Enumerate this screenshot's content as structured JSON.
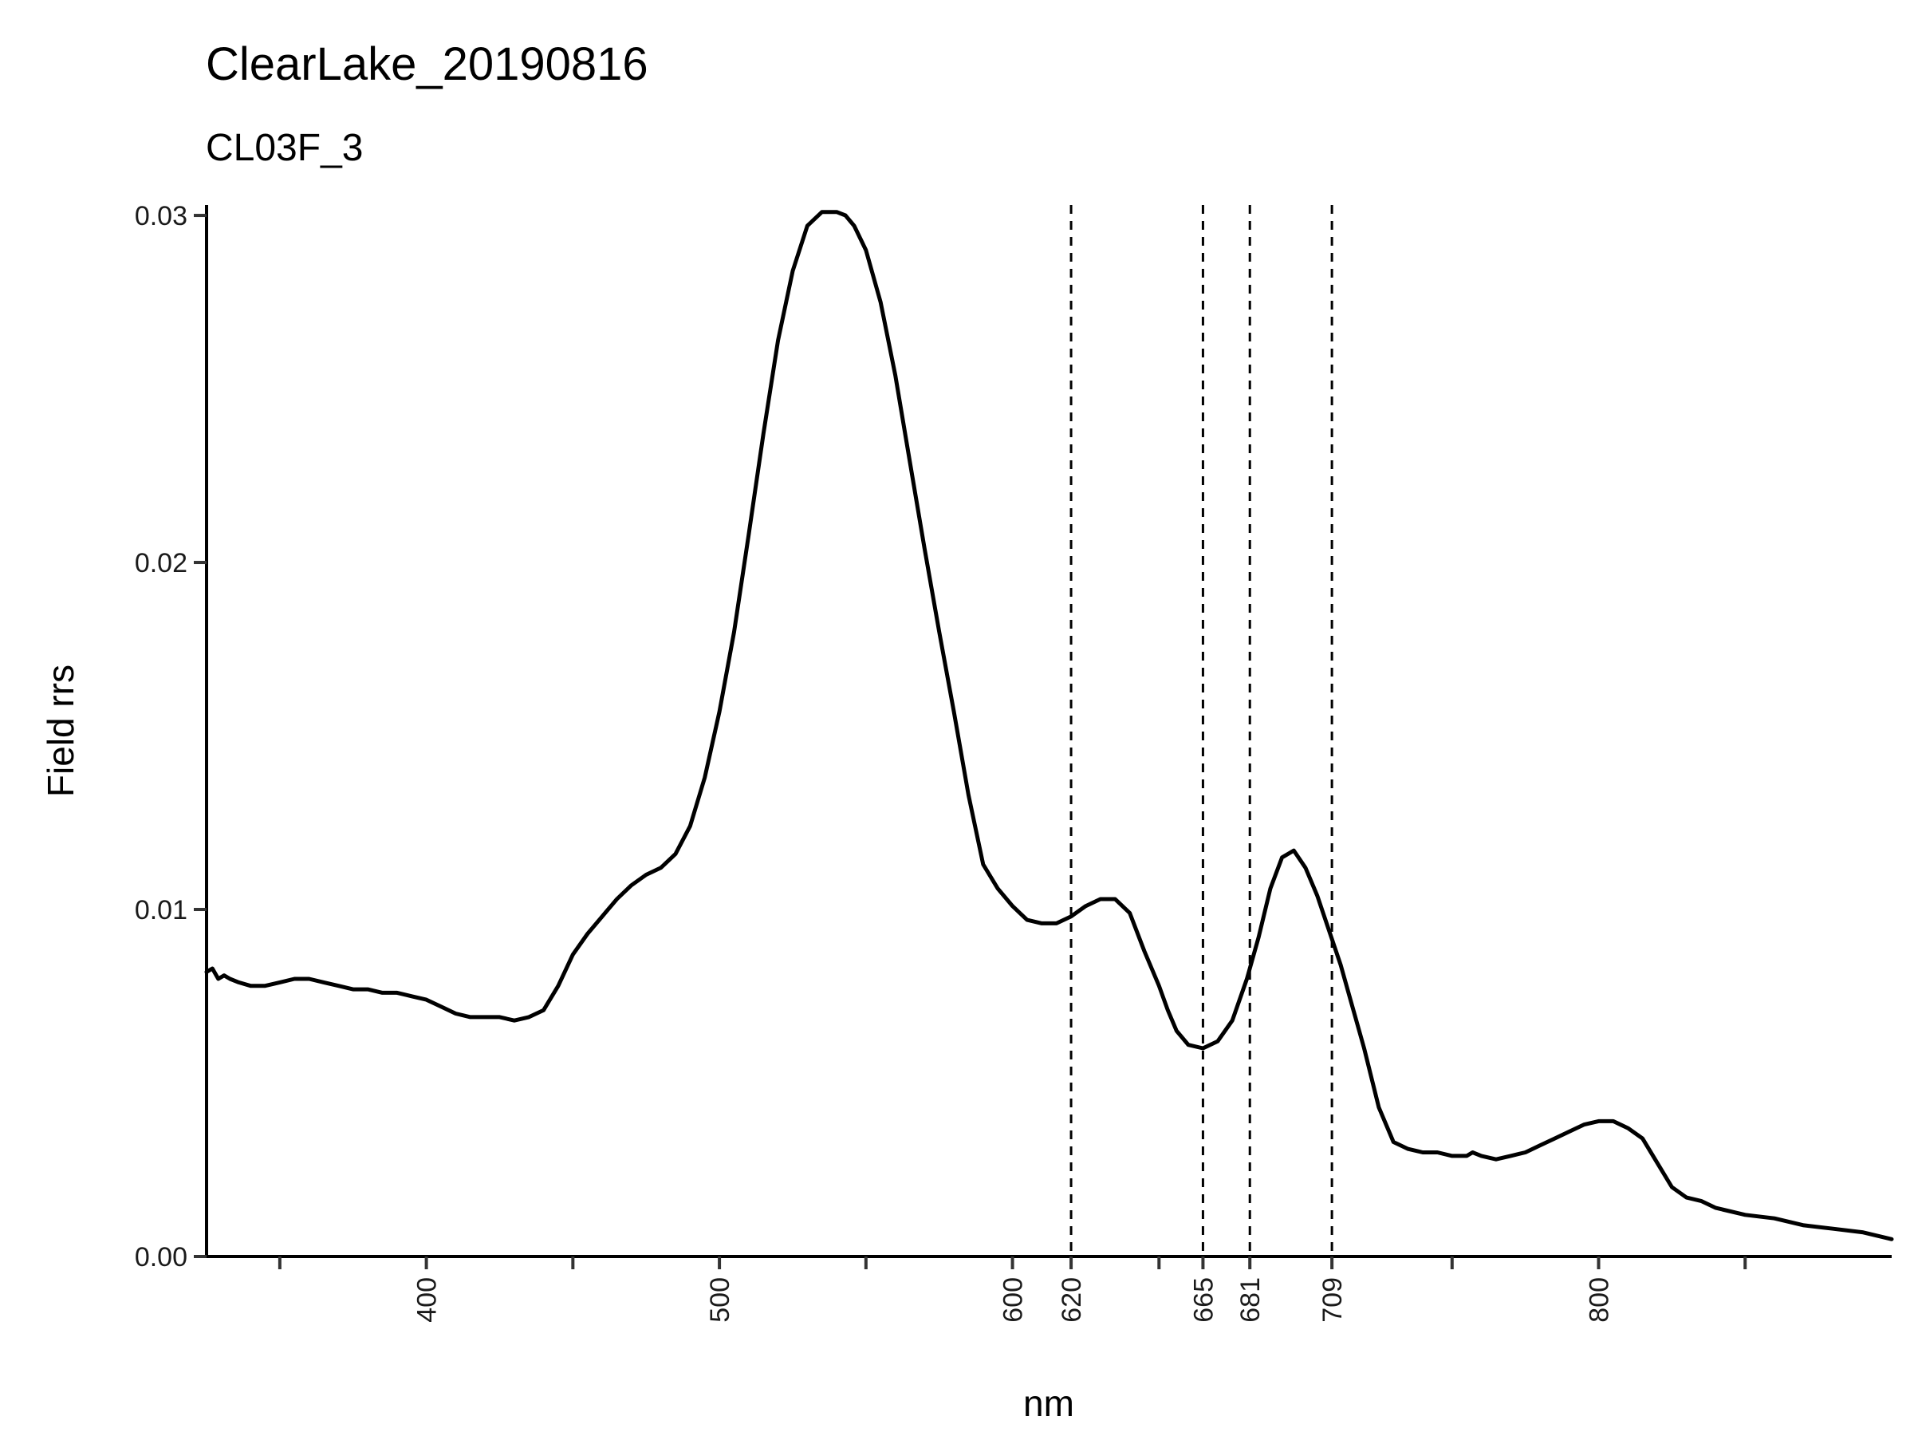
{
  "chart_data": {
    "type": "line",
    "title": "ClearLake_20190816",
    "subtitle": "CL03F_3",
    "xlabel": "nm",
    "ylabel": "Field rrs",
    "xlim": [
      325,
      900
    ],
    "ylim": [
      0,
      0.0303
    ],
    "grid": false,
    "x_ticks": [
      {
        "value": 350,
        "label": ""
      },
      {
        "value": 400,
        "label": "400"
      },
      {
        "value": 450,
        "label": ""
      },
      {
        "value": 500,
        "label": "500"
      },
      {
        "value": 550,
        "label": ""
      },
      {
        "value": 600,
        "label": "600"
      },
      {
        "value": 620,
        "label": "620"
      },
      {
        "value": 650,
        "label": ""
      },
      {
        "value": 665,
        "label": "665"
      },
      {
        "value": 681,
        "label": "681"
      },
      {
        "value": 709,
        "label": "709"
      },
      {
        "value": 750,
        "label": ""
      },
      {
        "value": 800,
        "label": "800"
      },
      {
        "value": 850,
        "label": ""
      }
    ],
    "y_ticks": [
      {
        "value": 0,
        "label": "0.00"
      },
      {
        "value": 0.01,
        "label": "0.01"
      },
      {
        "value": 0.02,
        "label": "0.02"
      },
      {
        "value": 0.03,
        "label": "0.03"
      }
    ],
    "vlines": [
      620,
      665,
      681,
      709
    ],
    "series": [
      {
        "color": "#000000",
        "x": [
          325,
          327,
          329,
          331,
          333,
          336,
          340,
          345,
          350,
          355,
          360,
          365,
          370,
          375,
          380,
          385,
          390,
          395,
          400,
          405,
          410,
          415,
          420,
          425,
          430,
          435,
          440,
          445,
          450,
          455,
          460,
          465,
          470,
          475,
          480,
          485,
          490,
          495,
          500,
          505,
          510,
          515,
          520,
          525,
          530,
          535,
          540,
          543,
          546,
          550,
          555,
          560,
          565,
          570,
          575,
          580,
          585,
          590,
          595,
          600,
          605,
          610,
          615,
          620,
          625,
          630,
          635,
          640,
          645,
          650,
          653,
          656,
          660,
          665,
          670,
          675,
          680,
          684,
          688,
          692,
          696,
          700,
          704,
          708,
          712,
          716,
          720,
          725,
          730,
          735,
          740,
          745,
          750,
          755,
          757,
          760,
          765,
          770,
          775,
          780,
          785,
          790,
          795,
          800,
          805,
          810,
          815,
          820,
          825,
          830,
          835,
          840,
          850,
          860,
          870,
          880,
          890,
          900
        ],
        "y": [
          0.0082,
          0.0083,
          0.008,
          0.0081,
          0.008,
          0.0079,
          0.0078,
          0.0078,
          0.0079,
          0.008,
          0.008,
          0.0079,
          0.0078,
          0.0077,
          0.0077,
          0.0076,
          0.0076,
          0.0075,
          0.0074,
          0.0072,
          0.007,
          0.0069,
          0.0069,
          0.0069,
          0.0068,
          0.0069,
          0.0071,
          0.0078,
          0.0087,
          0.0093,
          0.0098,
          0.0103,
          0.0107,
          0.011,
          0.0112,
          0.0116,
          0.0124,
          0.0138,
          0.0157,
          0.018,
          0.0208,
          0.0237,
          0.0264,
          0.0284,
          0.0297,
          0.0301,
          0.0301,
          0.03,
          0.0297,
          0.029,
          0.0275,
          0.0254,
          0.0229,
          0.0204,
          0.018,
          0.0157,
          0.0133,
          0.0113,
          0.0106,
          0.0101,
          0.0097,
          0.0096,
          0.0096,
          0.0098,
          0.0101,
          0.0103,
          0.0103,
          0.0099,
          0.0088,
          0.0078,
          0.0071,
          0.0065,
          0.0061,
          0.006,
          0.0062,
          0.0068,
          0.008,
          0.0092,
          0.0106,
          0.0115,
          0.0117,
          0.0112,
          0.0104,
          0.0094,
          0.0084,
          0.0072,
          0.006,
          0.0043,
          0.0033,
          0.0031,
          0.003,
          0.003,
          0.0029,
          0.0029,
          0.003,
          0.0029,
          0.0028,
          0.0029,
          0.003,
          0.0032,
          0.0034,
          0.0036,
          0.0038,
          0.0039,
          0.0039,
          0.0037,
          0.0034,
          0.0027,
          0.002,
          0.0017,
          0.0016,
          0.0014,
          0.0012,
          0.0011,
          0.0009,
          0.0008,
          0.0007,
          0.0005
        ]
      }
    ]
  }
}
